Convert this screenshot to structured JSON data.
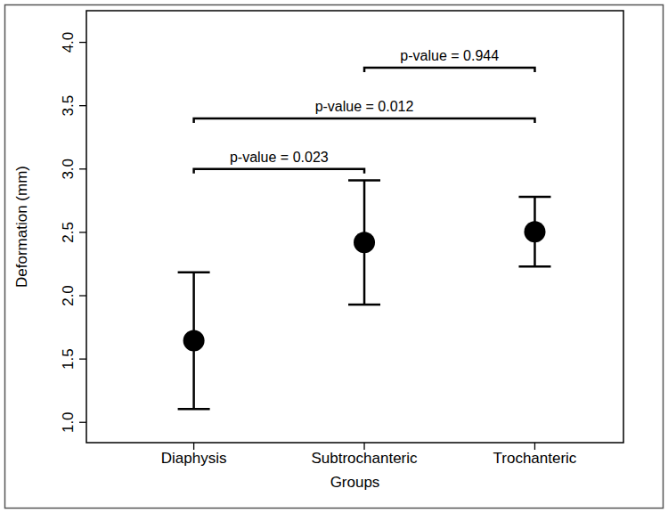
{
  "chart_data": {
    "type": "scatter",
    "x_label": "Groups",
    "y_label": "Deformation (mm)",
    "categories": [
      "Diaphysis",
      "Subtrochanteric",
      "Trochanteric"
    ],
    "values": [
      1.645,
      2.42,
      2.505
    ],
    "errors": [
      0.54,
      0.49,
      0.275
    ],
    "color": "#000000",
    "marker": "circle",
    "ylim": [
      0.84,
      4.25
    ],
    "yticks": [
      {
        "value": 1,
        "label": "1.0"
      },
      1.5,
      {
        "value": 2,
        "label": "2.0"
      },
      2.5,
      {
        "value": 3,
        "label": "3.0"
      },
      3.5,
      {
        "value": 4,
        "label": "4.0"
      }
    ],
    "annotations": [
      {
        "text": "p-value = 0.944",
        "from": "Subtrochanteric",
        "to": "Trochanteric",
        "y": 3.8
      },
      {
        "text": "p-value = 0.012",
        "from": "Diaphysis",
        "to": "Trochanteric",
        "y": 3.4
      },
      {
        "text": "p-value = 0.023",
        "from": "Diaphysis",
        "to": "Subtrochanteric",
        "y": 3.0
      }
    ]
  }
}
